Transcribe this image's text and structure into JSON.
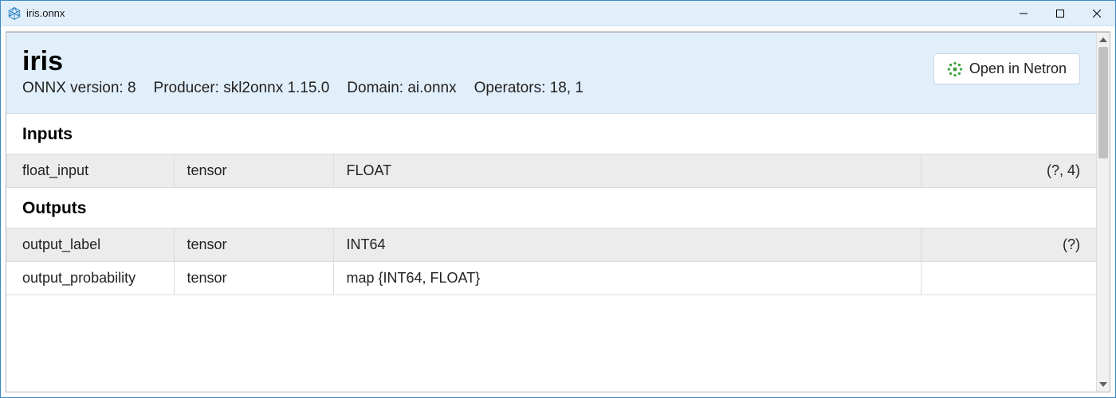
{
  "window": {
    "title": "iris.onnx"
  },
  "header": {
    "model_name": "iris",
    "open_button_label": "Open in Netron",
    "metadata": [
      {
        "label": "ONNX version",
        "value": "8"
      },
      {
        "label": "Producer",
        "value": "skl2onnx 1.15.0"
      },
      {
        "label": "Domain",
        "value": "ai.onnx"
      },
      {
        "label": "Operators",
        "value": "18, 1"
      }
    ]
  },
  "inputs": {
    "title": "Inputs",
    "rows": [
      {
        "name": "float_input",
        "kind": "tensor",
        "dtype": "FLOAT",
        "shape": "(?, 4)",
        "shaded": true
      }
    ]
  },
  "outputs": {
    "title": "Outputs",
    "rows": [
      {
        "name": "output_label",
        "kind": "tensor",
        "dtype": "INT64",
        "shape": "(?)",
        "shaded": true
      },
      {
        "name": "output_probability",
        "kind": "tensor",
        "dtype": "map {INT64, FLOAT}",
        "shape": "",
        "shaded": false
      }
    ]
  },
  "colors": {
    "titlebar_bg": "#e1effb",
    "header_bg": "#e1effb",
    "row_shaded_bg": "#ececec",
    "border": "#dcdcdc",
    "window_border": "#3a8ac6"
  }
}
